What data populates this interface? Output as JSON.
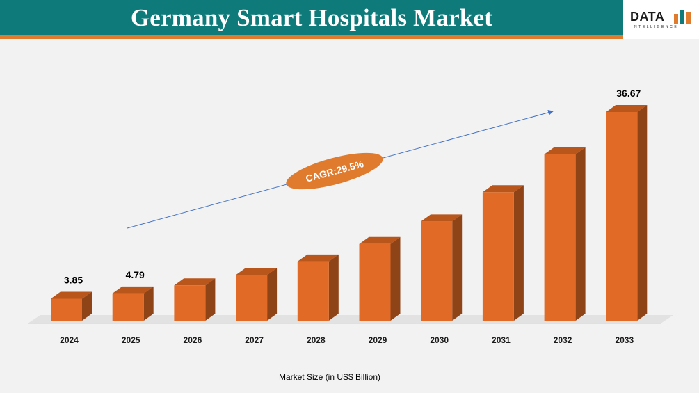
{
  "header": {
    "title": "Germany Smart Hospitals Market"
  },
  "logo": {
    "name": "DATA",
    "tagline": "INTELLIGENCE",
    "bar_colors": [
      "#e07b2e",
      "#0e7a7a",
      "#e07b2e"
    ]
  },
  "colors": {
    "bar_front": "#e06a26",
    "bar_top": "#b8561c",
    "bar_side": "#8f4418",
    "header_bg": "#0e7a7a",
    "accent": "#e07b2e",
    "trend": "#4472c4"
  },
  "chart_data": {
    "type": "bar",
    "title": "Germany Smart Hospitals Market",
    "xlabel": "Market Size (in US$ Billion)",
    "ylabel": "",
    "categories": [
      "2024",
      "2025",
      "2026",
      "2027",
      "2028",
      "2029",
      "2030",
      "2031",
      "2032",
      "2033"
    ],
    "values": [
      3.85,
      4.79,
      6.2,
      8.03,
      10.4,
      13.47,
      17.44,
      22.58,
      29.25,
      36.67
    ],
    "data_labels": [
      "3.85",
      "4.79",
      "",
      "",
      "",
      "",
      "",
      "",
      "",
      "36.67"
    ],
    "annotation": "CAGR:29.5%",
    "grid": false,
    "legend": "none"
  }
}
